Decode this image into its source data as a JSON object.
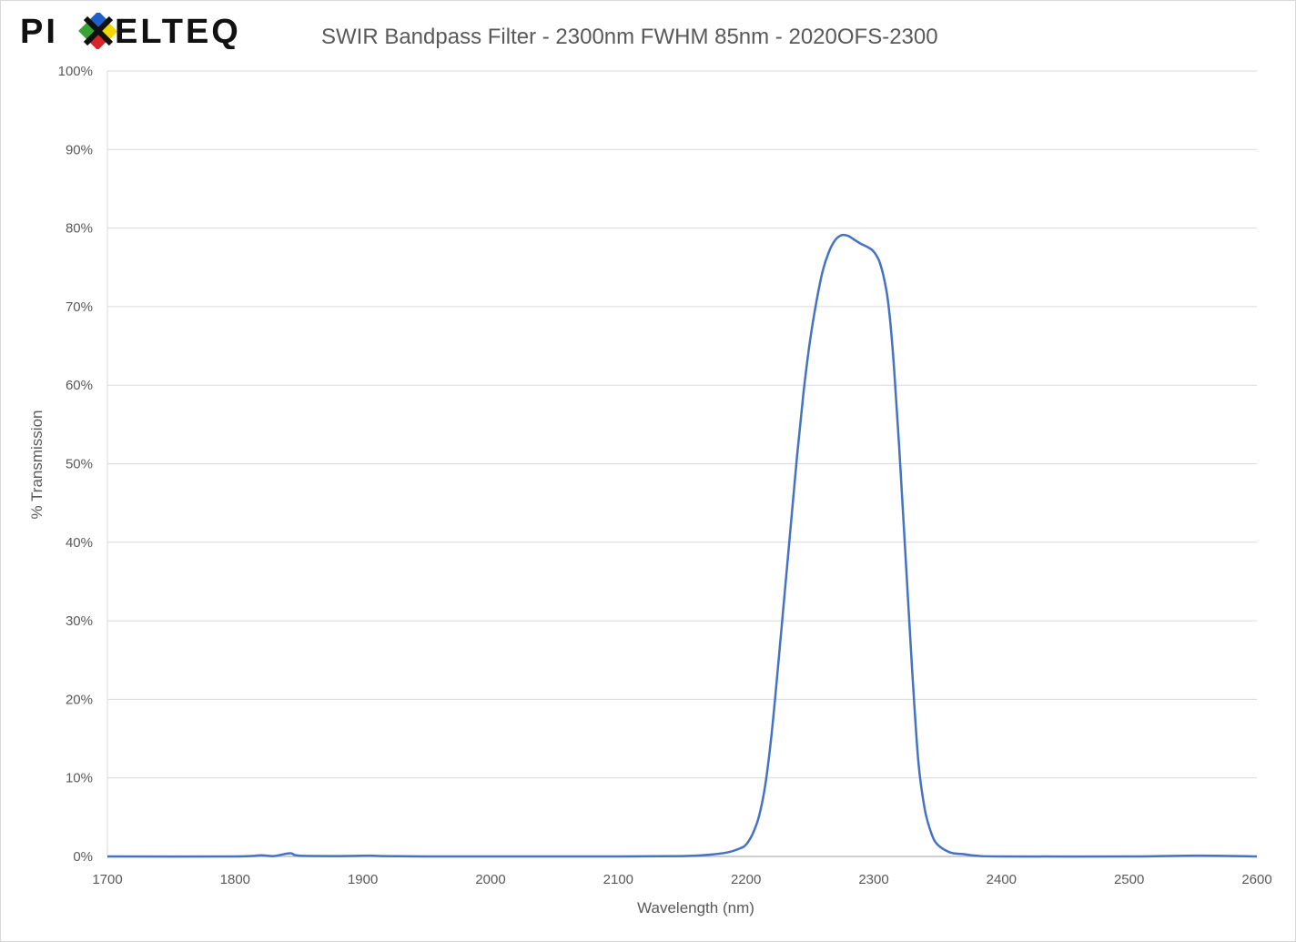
{
  "logo_text": "PIXELTEQ",
  "chart_data": {
    "type": "line",
    "title": "SWIR Bandpass Filter - 2300nm FWHM 85nm - 2020OFS-2300",
    "xlabel": "Wavelength (nm)",
    "ylabel": "% Transmission",
    "xlim": [
      1700,
      2600
    ],
    "ylim": [
      0,
      100
    ],
    "x_ticks": [
      1700,
      1800,
      1900,
      2000,
      2100,
      2200,
      2300,
      2400,
      2500,
      2600
    ],
    "x_tick_labels": [
      "1700",
      "1800",
      "1900",
      "2000",
      "2100",
      "2200",
      "2300",
      "2400",
      "2500",
      "2600"
    ],
    "y_ticks": [
      0,
      10,
      20,
      30,
      40,
      50,
      60,
      70,
      80,
      90,
      100
    ],
    "y_tick_labels": [
      "0%",
      "10%",
      "20%",
      "30%",
      "40%",
      "50%",
      "60%",
      "70%",
      "80%",
      "90%",
      "100%"
    ],
    "grid": true,
    "legend": "none",
    "series": [
      {
        "name": "Transmission",
        "color": "#4472c4",
        "x": [
          1700,
          1800,
          1820,
          1830,
          1843,
          1850,
          1880,
          1905,
          1915,
          1950,
          2000,
          2100,
          2150,
          2170,
          2185,
          2195,
          2200,
          2205,
          2210,
          2215,
          2220,
          2225,
          2230,
          2235,
          2240,
          2245,
          2250,
          2255,
          2260,
          2265,
          2270,
          2275,
          2280,
          2285,
          2290,
          2295,
          2300,
          2305,
          2310,
          2313,
          2316,
          2320,
          2325,
          2330,
          2335,
          2340,
          2345,
          2350,
          2360,
          2370,
          2380,
          2400,
          2500,
          2553,
          2600
        ],
        "y": [
          0,
          0,
          0.15,
          0.05,
          0.4,
          0.1,
          0.05,
          0.1,
          0.05,
          0,
          0,
          0,
          0.05,
          0.2,
          0.5,
          1.0,
          1.5,
          2.8,
          5,
          9,
          15.5,
          24,
          33,
          42,
          51,
          59,
          65.5,
          70.5,
          74.5,
          77,
          78.5,
          79.1,
          79,
          78.5,
          78,
          77.6,
          77,
          75.5,
          72,
          68,
          62,
          52,
          38,
          24,
          12,
          6,
          3,
          1.5,
          0.5,
          0.3,
          0.1,
          0,
          0,
          0.1,
          0
        ]
      }
    ]
  }
}
